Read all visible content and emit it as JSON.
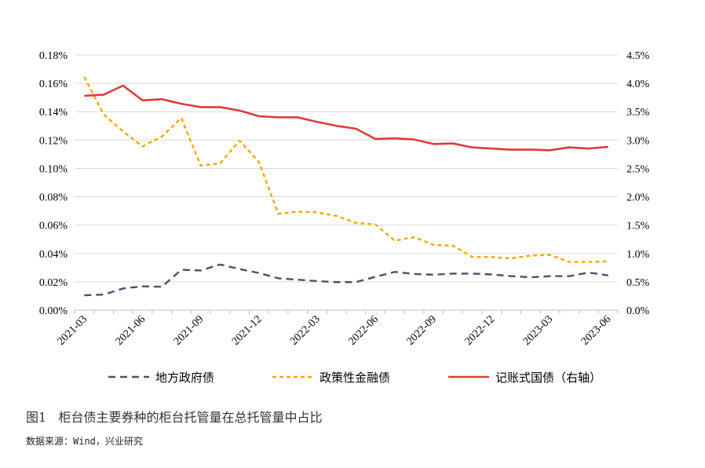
{
  "chart_data": {
    "type": "line",
    "title": "",
    "categories": [
      "2021-03",
      "",
      "",
      "2021-06",
      "",
      "",
      "2021-09",
      "",
      "",
      "2021-12",
      "",
      "",
      "2022-03",
      "",
      "",
      "2022-06",
      "",
      "",
      "2022-09",
      "",
      "",
      "2022-12",
      "",
      "",
      "2023-03",
      "",
      "",
      "2023-06"
    ],
    "x_tick_labels": [
      "2021-03",
      "2021-06",
      "2021-09",
      "2021-12",
      "2022-03",
      "2022-06",
      "2022-09",
      "2022-12",
      "2023-03",
      "2023-06"
    ],
    "x_points": 28,
    "left_axis": {
      "ylim": [
        0,
        0.18
      ],
      "ticks": [
        "0.00%",
        "0.02%",
        "0.04%",
        "0.06%",
        "0.08%",
        "0.10%",
        "0.12%",
        "0.14%",
        "0.16%",
        "0.18%"
      ]
    },
    "right_axis": {
      "ylim": [
        0,
        4.5
      ],
      "ticks": [
        "0.0%",
        "0.5%",
        "1.0%",
        "1.5%",
        "2.0%",
        "2.5%",
        "3.0%",
        "3.5%",
        "4.0%",
        "4.5%"
      ]
    },
    "series": [
      {
        "name": "地方政府债",
        "axis": "left",
        "color": "#44546A",
        "style": "dashed-long",
        "values": [
          0.0105,
          0.011,
          0.0153,
          0.0168,
          0.0165,
          0.0285,
          0.028,
          0.0322,
          0.029,
          0.0262,
          0.0225,
          0.0215,
          0.0205,
          0.0198,
          0.0198,
          0.0235,
          0.027,
          0.0255,
          0.025,
          0.0258,
          0.0258,
          0.0252,
          0.024,
          0.0232,
          0.024,
          0.024,
          0.0265,
          0.0245
        ]
      },
      {
        "name": "政策性金融债",
        "axis": "left",
        "color": "#F4A800",
        "style": "dashed-short",
        "values": [
          0.1645,
          0.138,
          0.126,
          0.1155,
          0.1225,
          0.1355,
          0.102,
          0.1035,
          0.1195,
          0.1045,
          0.068,
          0.0695,
          0.069,
          0.0665,
          0.0615,
          0.0605,
          0.049,
          0.0515,
          0.046,
          0.0455,
          0.0375,
          0.0375,
          0.0365,
          0.0385,
          0.039,
          0.034,
          0.034,
          0.0345
        ]
      },
      {
        "name": "记账式国债（右轴）",
        "axis": "right",
        "color": "#DC3C3C",
        "style": "solid",
        "values": [
          3.78,
          3.8,
          3.96,
          3.7,
          3.72,
          3.64,
          3.58,
          3.58,
          3.52,
          3.42,
          3.4,
          3.4,
          3.32,
          3.25,
          3.2,
          3.02,
          3.03,
          3.01,
          2.93,
          2.94,
          2.87,
          2.85,
          2.83,
          2.83,
          2.82,
          2.87,
          2.85,
          2.88
        ]
      }
    ],
    "legend_position": "bottom"
  },
  "caption": "图1   柜台债主要券种的柜台托管量在总托管量中占比",
  "source": "数据来源：Wind，兴业研究"
}
